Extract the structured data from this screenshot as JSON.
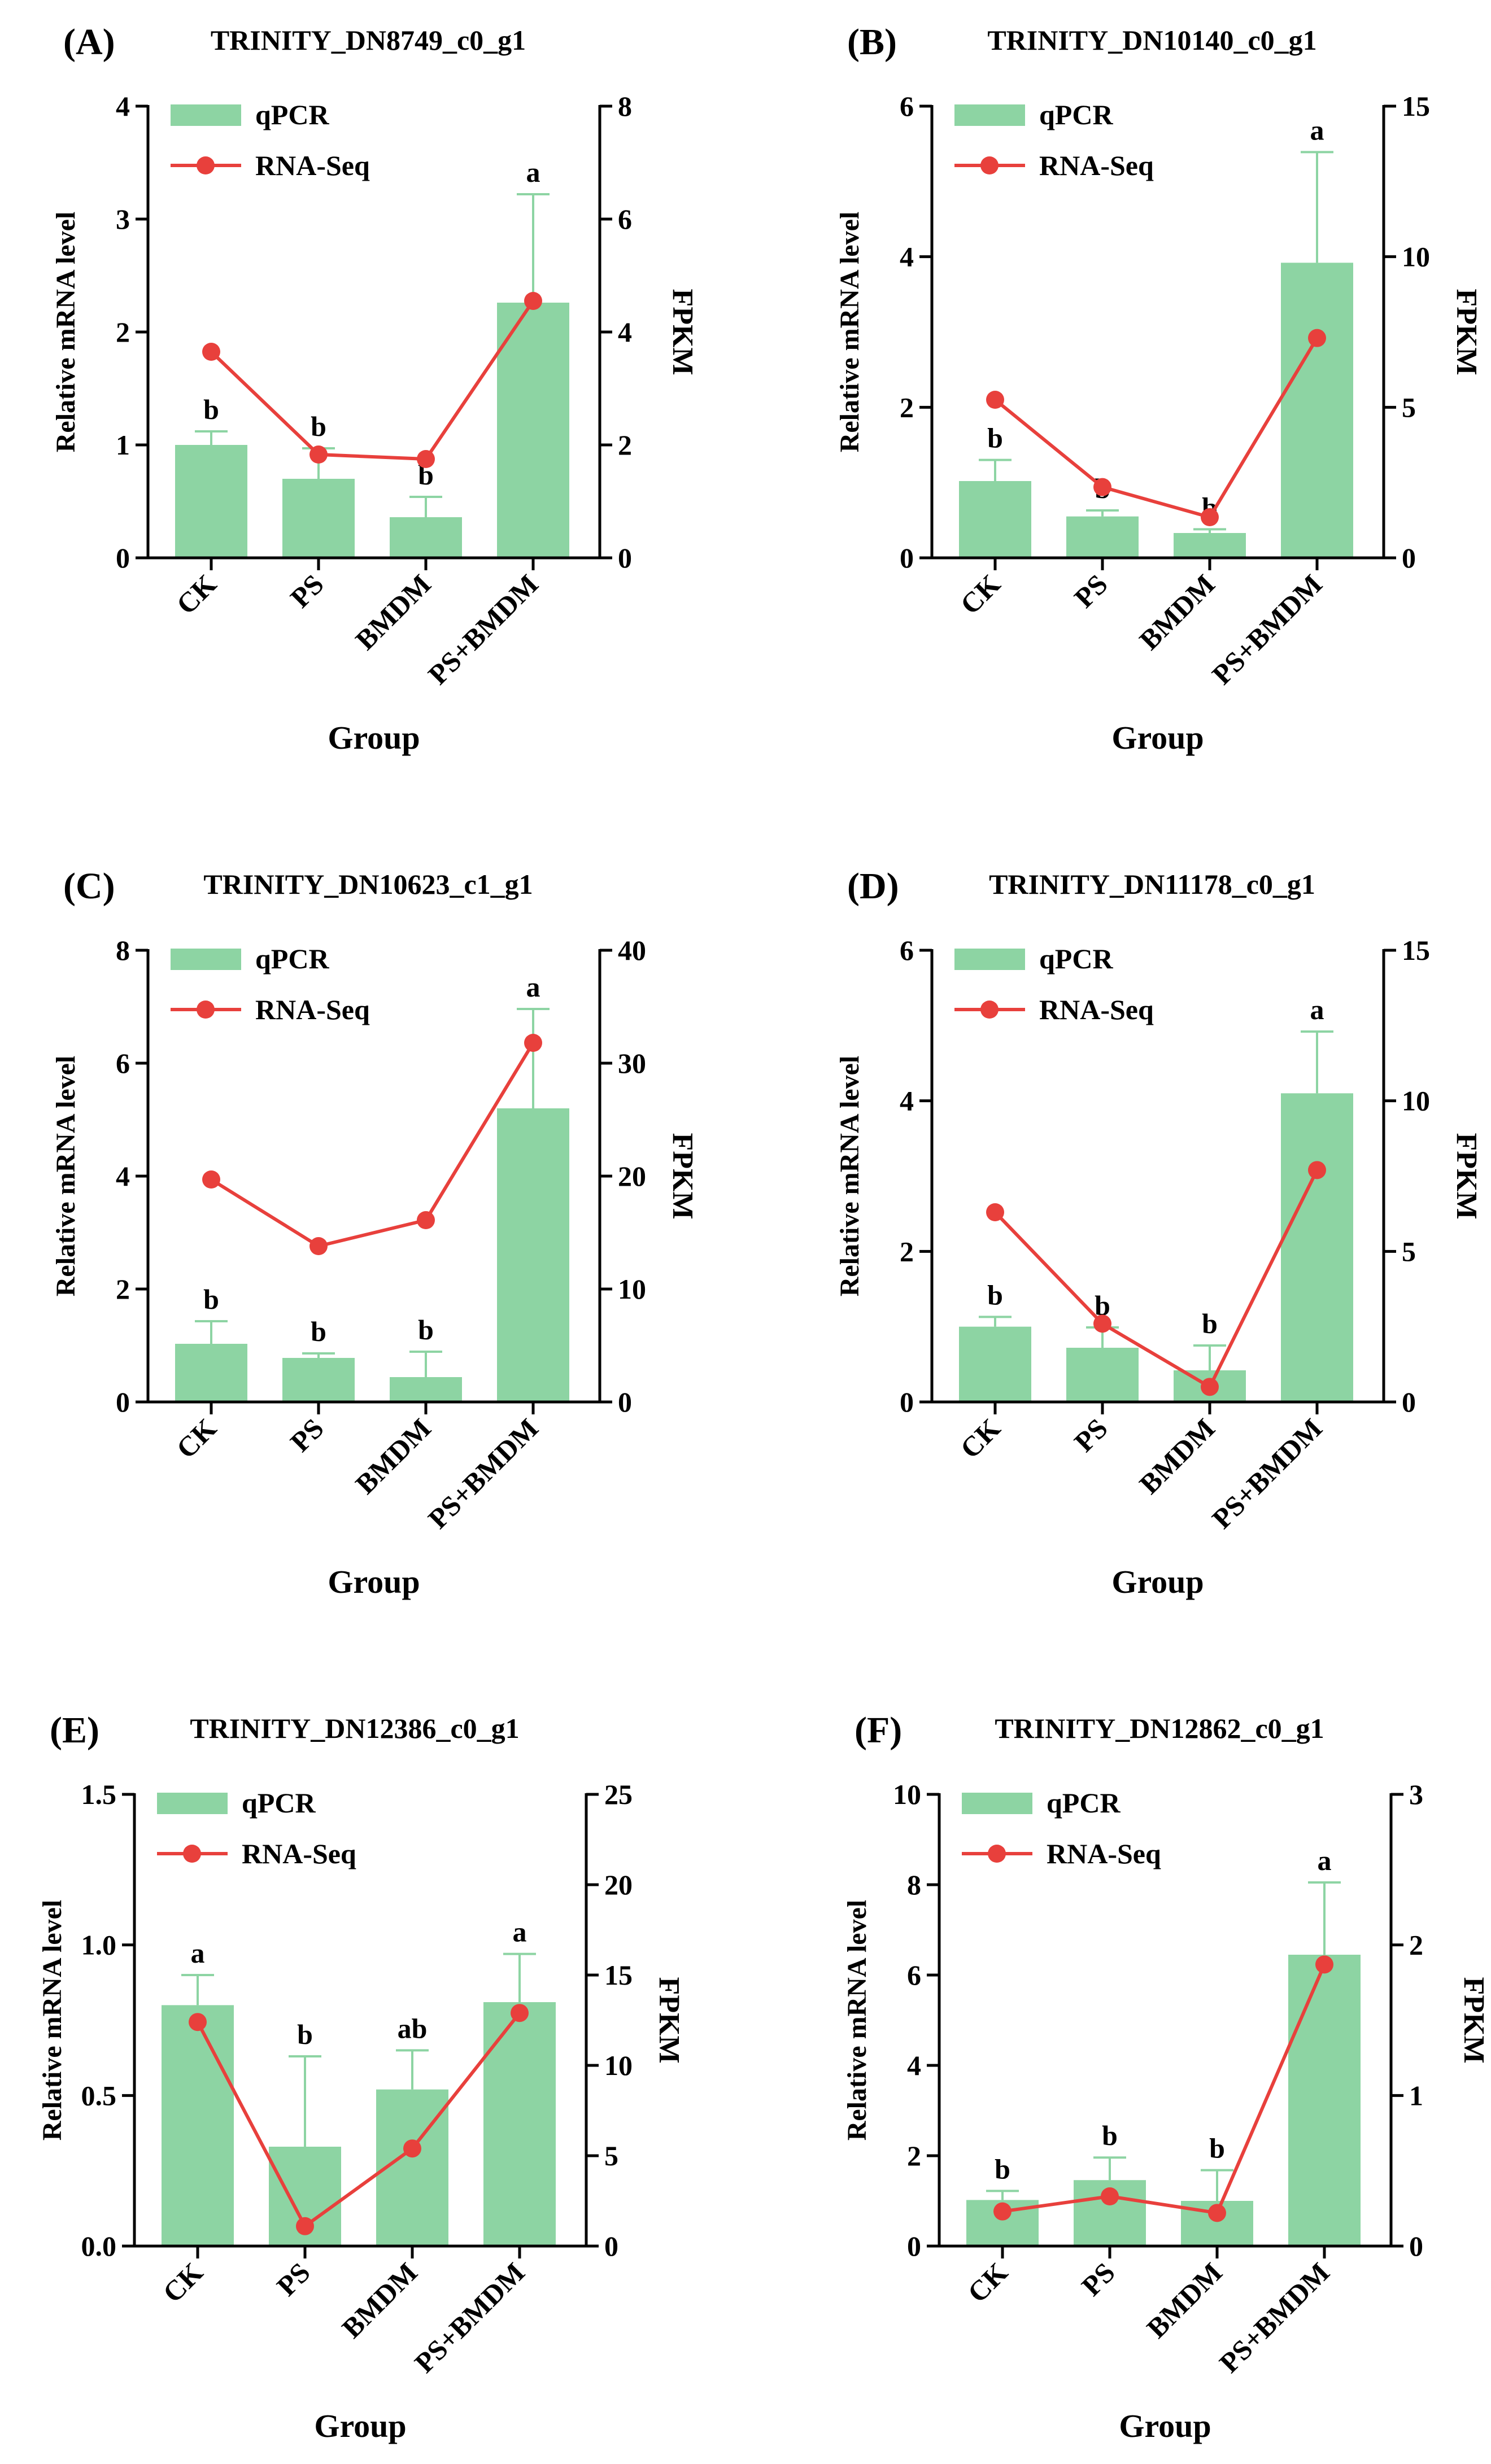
{
  "figure": {
    "x_categories": [
      "CK",
      "PS",
      "BMDM",
      "PS+BMDM"
    ]
  },
  "chart_data": [
    {
      "type": "bar",
      "panel_label": "(A)",
      "title": "TRINITY_DN8749_c0_g1",
      "categories": [
        "CK",
        "PS",
        "BMDM",
        "PS+BMDM"
      ],
      "xlabel": "Group",
      "ylabel": "Relative mRNA level",
      "ylabel_right": "FPKM",
      "ylim": [
        0,
        4
      ],
      "yticks": [
        "0",
        "1",
        "2",
        "3",
        "4"
      ],
      "ylim_right": [
        0,
        8
      ],
      "yticks_right": [
        "0",
        "2",
        "4",
        "6",
        "8"
      ],
      "legend": [
        "qPCR",
        "RNA-Seq"
      ],
      "series": [
        {
          "name": "qPCR",
          "type": "bar",
          "values": [
            1.0,
            0.7,
            0.36,
            2.26
          ],
          "error": [
            0.12,
            0.27,
            0.18,
            0.96
          ],
          "significance": [
            "b",
            "b",
            "b",
            "a"
          ]
        },
        {
          "name": "RNA-Seq",
          "type": "line",
          "axis": "right",
          "values": [
            3.65,
            1.83,
            1.75,
            4.55
          ]
        }
      ]
    },
    {
      "type": "bar",
      "panel_label": "(B)",
      "title": "TRINITY_DN10140_c0_g1",
      "categories": [
        "CK",
        "PS",
        "BMDM",
        "PS+BMDM"
      ],
      "xlabel": "Group",
      "ylabel": "Relative mRNA level",
      "ylabel_right": "FPKM",
      "ylim": [
        0,
        6
      ],
      "yticks": [
        "0",
        "2",
        "4",
        "6"
      ],
      "ylim_right": [
        0,
        15
      ],
      "yticks_right": [
        "0",
        "5",
        "10",
        "15"
      ],
      "legend": [
        "qPCR",
        "RNA-Seq"
      ],
      "series": [
        {
          "name": "qPCR",
          "type": "bar",
          "values": [
            1.02,
            0.55,
            0.33,
            3.92
          ],
          "error": [
            0.28,
            0.08,
            0.05,
            1.47
          ],
          "significance": [
            "b",
            "b",
            "b",
            "a"
          ]
        },
        {
          "name": "RNA-Seq",
          "type": "line",
          "axis": "right",
          "values": [
            5.25,
            2.35,
            1.35,
            7.3
          ]
        }
      ]
    },
    {
      "type": "bar",
      "panel_label": "(C)",
      "title": "TRINITY_DN10623_c1_g1",
      "categories": [
        "CK",
        "PS",
        "BMDM",
        "PS+BMDM"
      ],
      "xlabel": "Group",
      "ylabel": "Relative mRNA level",
      "ylabel_right": "FPKM",
      "ylim": [
        0,
        8
      ],
      "yticks": [
        "0",
        "2",
        "4",
        "6",
        "8"
      ],
      "ylim_right": [
        0,
        40
      ],
      "yticks_right": [
        "0",
        "10",
        "20",
        "30",
        "40"
      ],
      "legend": [
        "qPCR",
        "RNA-Seq"
      ],
      "series": [
        {
          "name": "qPCR",
          "type": "bar",
          "values": [
            1.03,
            0.78,
            0.44,
            5.2
          ],
          "error": [
            0.4,
            0.08,
            0.45,
            1.76
          ],
          "significance": [
            "b",
            "b",
            "b",
            "a"
          ]
        },
        {
          "name": "RNA-Seq",
          "type": "line",
          "axis": "right",
          "values": [
            19.7,
            13.8,
            16.1,
            31.8
          ]
        }
      ]
    },
    {
      "type": "bar",
      "panel_label": "(D)",
      "title": "TRINITY_DN11178_c0_g1",
      "categories": [
        "CK",
        "PS",
        "BMDM",
        "PS+BMDM"
      ],
      "xlabel": "Group",
      "ylabel": "Relative mRNA level",
      "ylabel_right": "FPKM",
      "ylim": [
        0,
        6
      ],
      "yticks": [
        "0",
        "2",
        "4",
        "6"
      ],
      "ylim_right": [
        0,
        15
      ],
      "yticks_right": [
        "0",
        "5",
        "10",
        "15"
      ],
      "legend": [
        "qPCR",
        "RNA-Seq"
      ],
      "series": [
        {
          "name": "qPCR",
          "type": "bar",
          "values": [
            1.0,
            0.72,
            0.42,
            4.1
          ],
          "error": [
            0.13,
            0.27,
            0.33,
            0.82
          ],
          "significance": [
            "b",
            "b",
            "b",
            "a"
          ]
        },
        {
          "name": "RNA-Seq",
          "type": "line",
          "axis": "right",
          "values": [
            6.3,
            2.6,
            0.5,
            7.7
          ]
        }
      ]
    },
    {
      "type": "bar",
      "panel_label": "(E)",
      "title": "TRINITY_DN12386_c0_g1",
      "categories": [
        "CK",
        "PS",
        "BMDM",
        "PS+BMDM"
      ],
      "xlabel": "Group",
      "ylabel": "Relative mRNA level",
      "ylabel_right": "FPKM",
      "ylim": [
        0,
        1.5
      ],
      "yticks": [
        "0.0",
        "0.5",
        "1.0",
        "1.5"
      ],
      "ylim_right": [
        0,
        25
      ],
      "yticks_right": [
        "0",
        "5",
        "10",
        "15",
        "20",
        "25"
      ],
      "legend": [
        "qPCR",
        "RNA-Seq"
      ],
      "series": [
        {
          "name": "qPCR",
          "type": "bar",
          "values": [
            0.8,
            0.33,
            0.52,
            0.81
          ],
          "error": [
            0.1,
            0.3,
            0.13,
            0.16
          ],
          "significance": [
            "a",
            "b",
            "ab",
            "a"
          ]
        },
        {
          "name": "RNA-Seq",
          "type": "line",
          "axis": "right",
          "values": [
            12.4,
            1.1,
            5.4,
            12.9
          ]
        }
      ]
    },
    {
      "type": "bar",
      "panel_label": "(F)",
      "title": "TRINITY_DN12862_c0_g1",
      "categories": [
        "CK",
        "PS",
        "BMDM",
        "PS+BMDM"
      ],
      "xlabel": "Group",
      "ylabel": "Relative mRNA level",
      "ylabel_right": "FPKM",
      "ylim": [
        0,
        10
      ],
      "yticks": [
        "0",
        "2",
        "4",
        "6",
        "8",
        "10"
      ],
      "ylim_right": [
        0,
        3
      ],
      "yticks_right": [
        "0",
        "1",
        "2",
        "3"
      ],
      "legend": [
        "qPCR",
        "RNA-Seq"
      ],
      "series": [
        {
          "name": "qPCR",
          "type": "bar",
          "values": [
            1.02,
            1.46,
            1.0,
            6.45
          ],
          "error": [
            0.2,
            0.5,
            0.68,
            1.6
          ],
          "significance": [
            "b",
            "b",
            "b",
            "a"
          ]
        },
        {
          "name": "RNA-Seq",
          "type": "line",
          "axis": "right",
          "values": [
            0.23,
            0.33,
            0.22,
            1.87
          ]
        }
      ]
    }
  ],
  "colors": {
    "bar": "#8dd4a3",
    "error_bar": "#8dd4a3",
    "line": "#e8403c",
    "axis": "#000000",
    "text": "#000000"
  }
}
